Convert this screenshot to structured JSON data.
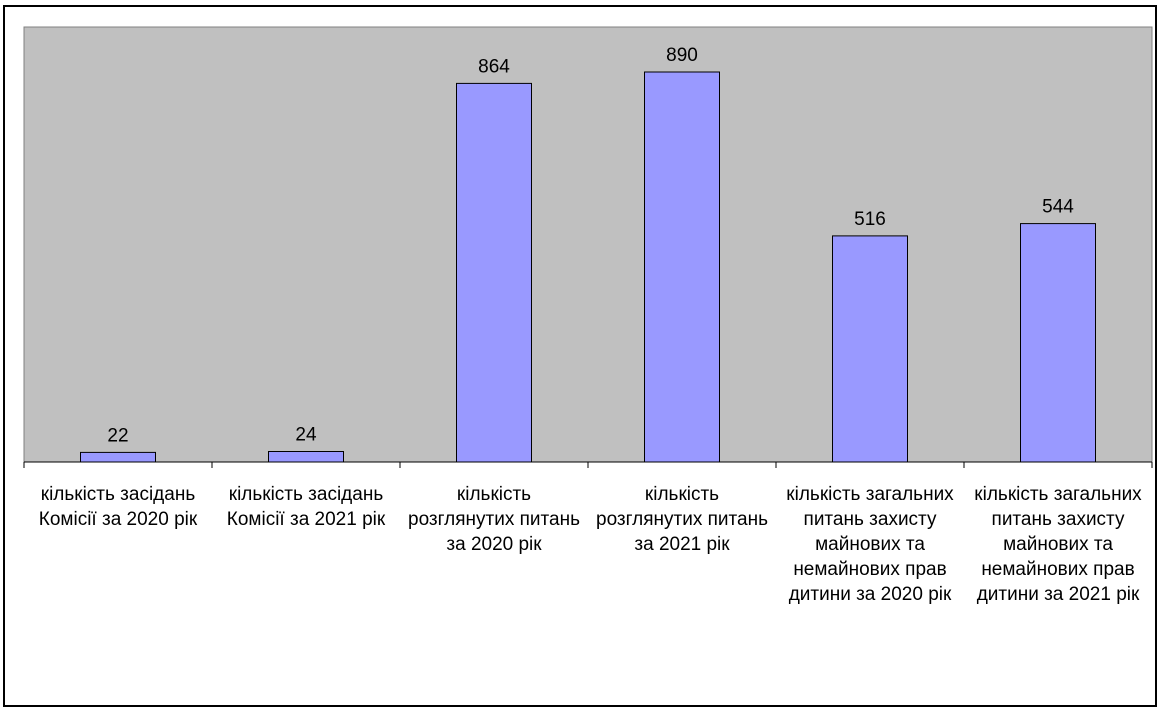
{
  "chart_data": {
    "type": "bar",
    "title": "",
    "xlabel": "",
    "ylabel": "",
    "categories": [
      "кількість засідань Комісії за 2020 рік",
      "кількість засідань Комісії за 2021 рік",
      "кількість розглянутих питань за 2020 рік",
      "кількість розглянутих питань за 2021 рік",
      "кількість загальних питань захисту майнових та немайнових прав дитини за 2020 рік",
      "кількість загальних питань захисту майнових та немайнових прав дитини за 2021 рік"
    ],
    "values": [
      22,
      24,
      864,
      890,
      516,
      544
    ],
    "data_labels": [
      "22",
      "24",
      "864",
      "890",
      "516",
      "544"
    ],
    "ylim": [
      0,
      1000
    ],
    "grid": false,
    "legend": "none",
    "colors": {
      "bar_fill": "#9999ff",
      "bar_stroke": "#000000",
      "plot_background": "#c0c0c0",
      "frame": "#000000"
    }
  }
}
